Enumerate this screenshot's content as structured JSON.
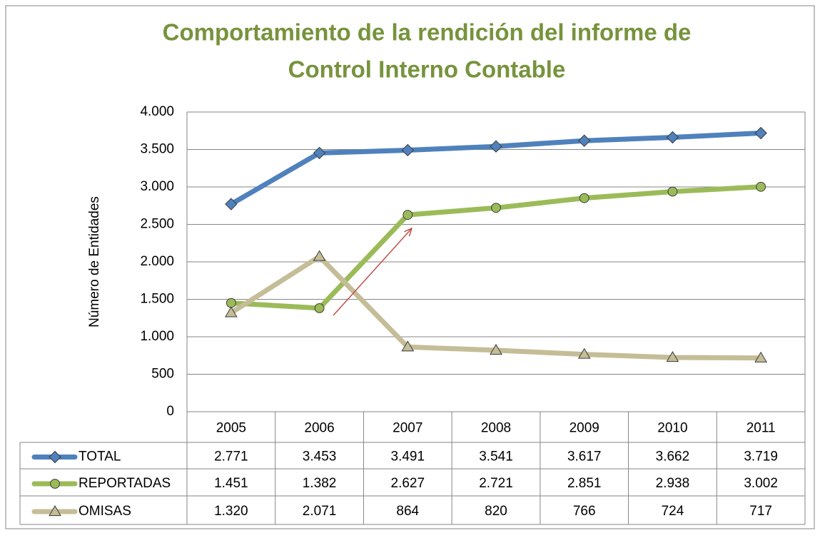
{
  "chart_data": {
    "type": "line",
    "title": [
      "Comportamiento de la rendición del informe de",
      "Control Interno Contable"
    ],
    "y_label": "Número de Entidades",
    "categories": [
      "2005",
      "2006",
      "2007",
      "2008",
      "2009",
      "2010",
      "2011"
    ],
    "series": [
      {
        "name": "TOTAL",
        "color": "#4f81bd",
        "marker": "diamond",
        "values": [
          2771,
          3453,
          3491,
          3541,
          3617,
          3662,
          3719
        ],
        "value_labels": [
          "2.771",
          "3.453",
          "3.491",
          "3.541",
          "3.617",
          "3.662",
          "3.719"
        ]
      },
      {
        "name": "REPORTADAS",
        "color": "#9bbb59",
        "marker": "circle",
        "values": [
          1451,
          1382,
          2627,
          2721,
          2851,
          2938,
          3002
        ],
        "value_labels": [
          "1.451",
          "1.382",
          "2.627",
          "2.721",
          "2.851",
          "2.938",
          "3.002"
        ]
      },
      {
        "name": "OMISAS",
        "color": "#c4bd97",
        "marker": "triangle",
        "values": [
          1320,
          2071,
          864,
          820,
          766,
          724,
          717
        ],
        "value_labels": [
          "1.320",
          "2.071",
          "864",
          "820",
          "766",
          "724",
          "717"
        ]
      }
    ],
    "ylim": [
      0,
      4000
    ],
    "yticks": [
      0,
      500,
      {
        "value": 1000,
        "label": "1.000"
      },
      {
        "value": 1500,
        "label": "1.500"
      },
      {
        "value": 2000,
        "label": "2.000"
      },
      {
        "value": 2500,
        "label": "2.500"
      },
      {
        "value": 3000,
        "label": "3.000"
      },
      {
        "value": 3500,
        "label": "3.500"
      },
      {
        "value": 4000,
        "label": "4.000"
      }
    ],
    "grid": true
  }
}
